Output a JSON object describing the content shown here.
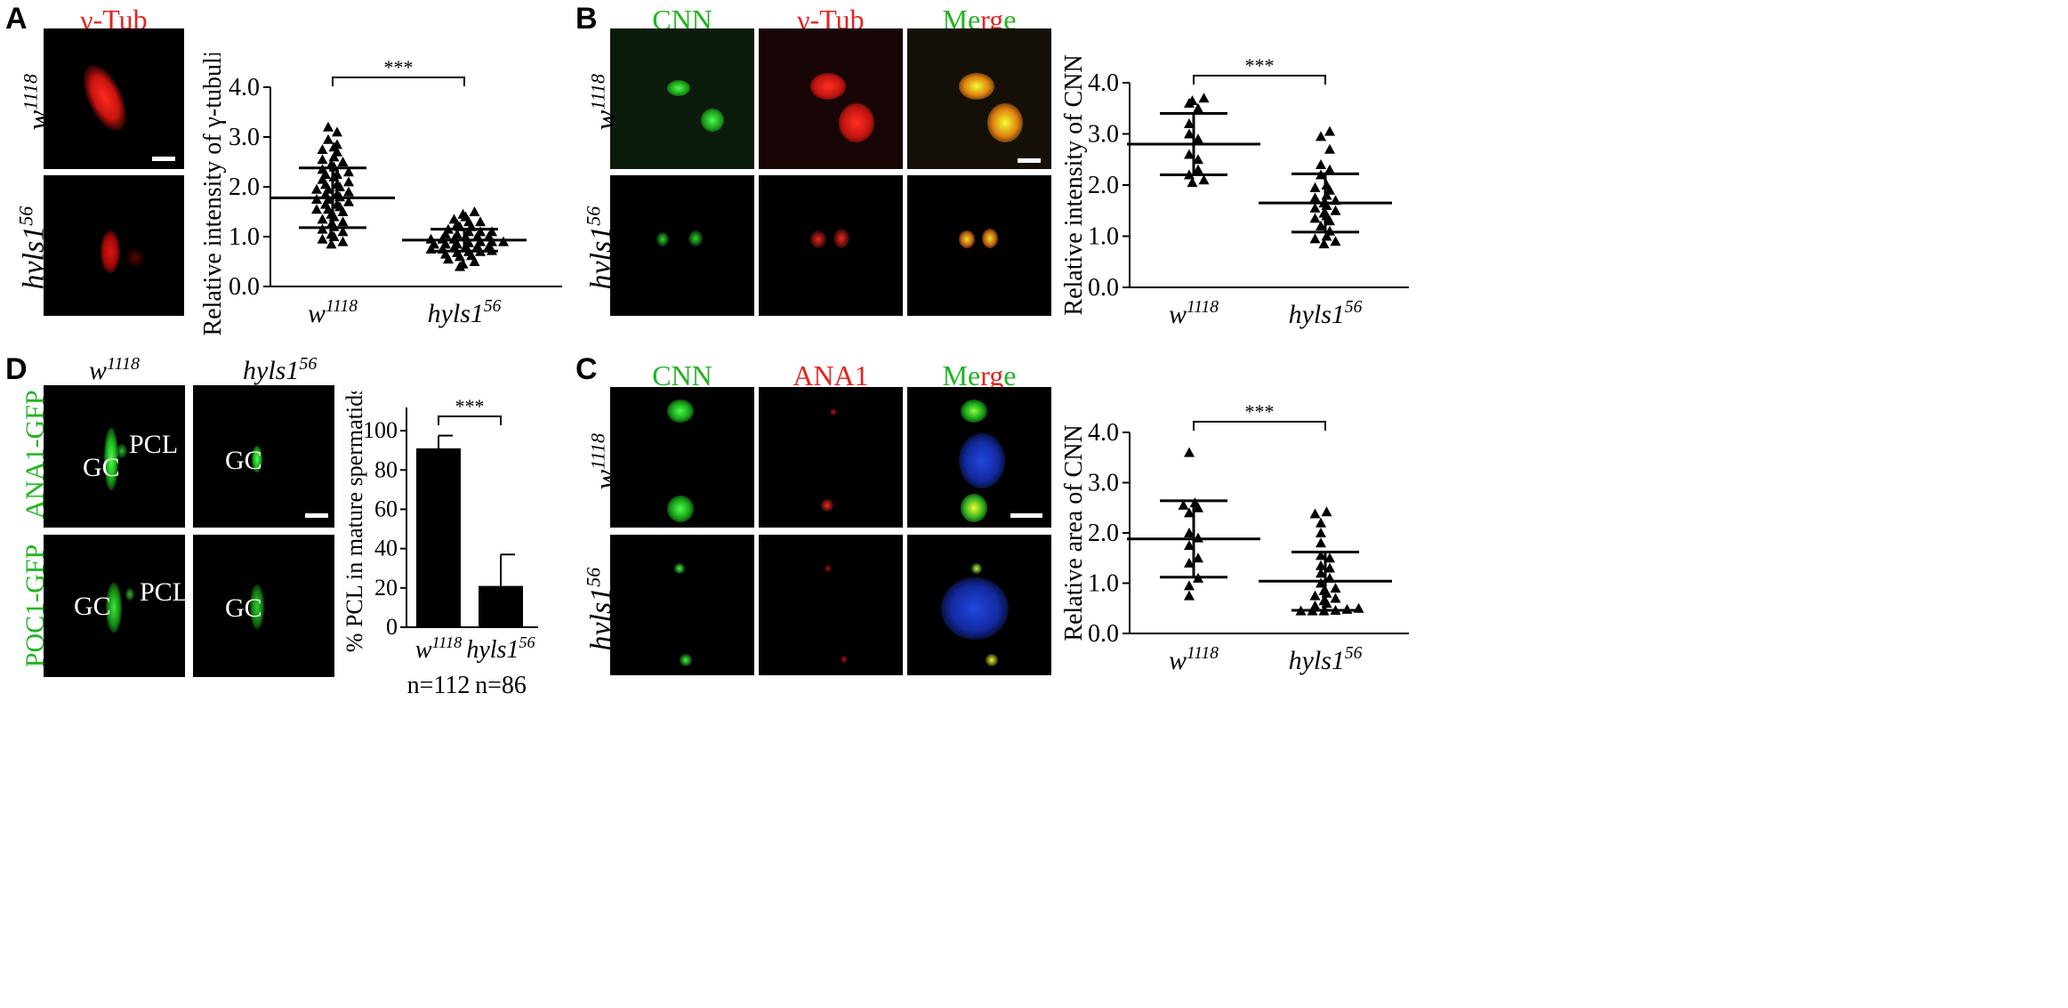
{
  "panels": {
    "A": {
      "letter": "A",
      "channel_header": "γ-Tub",
      "row_labels": [
        "w",
        "1118",
        "hyls1",
        "56"
      ],
      "chart": {
        "ylabel": "Relative intensity of γ-tubulin",
        "yticks": [
          "0.0",
          "1.0",
          "2.0",
          "3.0",
          "4.0"
        ],
        "ylim": [
          0,
          4
        ],
        "significance": "***",
        "xcats": [
          {
            "base": "w",
            "sup": "1118"
          },
          {
            "base": "hyls1",
            "sup": "56"
          }
        ]
      }
    },
    "B": {
      "letter": "B",
      "headers": [
        "CNN",
        "γ-Tub",
        "M",
        "e",
        "r",
        "g",
        "e"
      ],
      "row_labels": [
        "w",
        "1118",
        "hyls1",
        "56"
      ],
      "chart": {
        "ylabel": "Relative intensity of CNN",
        "yticks": [
          "0.0",
          "1.0",
          "2.0",
          "3.0",
          "4.0"
        ],
        "ylim": [
          0,
          4
        ],
        "significance": "***",
        "xcats": [
          {
            "base": "w",
            "sup": "1118"
          },
          {
            "base": "hyls1",
            "sup": "56"
          }
        ]
      }
    },
    "C": {
      "letter": "C",
      "headers": [
        "CNN",
        "ANA1",
        "M",
        "e",
        "r",
        "g",
        "e"
      ],
      "row_labels": [
        "w",
        "1118",
        "hyls1",
        "56"
      ],
      "chart": {
        "ylabel": "Relative area of CNN",
        "yticks": [
          "0.0",
          "1.0",
          "2.0",
          "3.0",
          "4.0"
        ],
        "ylim": [
          0,
          4
        ],
        "significance": "***",
        "xcats": [
          {
            "base": "w",
            "sup": "1118"
          },
          {
            "base": "hyls1",
            "sup": "56"
          }
        ]
      }
    },
    "D": {
      "letter": "D",
      "col_headers": [
        {
          "base": "w",
          "sup": "1118"
        },
        {
          "base": "hyls1",
          "sup": "56"
        }
      ],
      "row_labels": [
        "ANA1-GFP",
        "POC1-GFP"
      ],
      "annotations": {
        "gc": "GC",
        "pcl": "PCL"
      },
      "chart": {
        "ylabel": "% PCL in mature spermatids",
        "yticks": [
          "0",
          "20",
          "40",
          "60",
          "80",
          "100"
        ],
        "ylim": [
          0,
          110
        ],
        "significance": "***",
        "xcats": [
          {
            "base": "w",
            "sup": "1118",
            "n": "n=112"
          },
          {
            "base": "hyls1",
            "sup": "56",
            "n": "n=86"
          }
        ]
      }
    }
  },
  "colors": {
    "green": "#22b422",
    "red": "#e8231f",
    "blue": "#1e3cc8"
  },
  "chart_data": [
    {
      "type": "scatter",
      "panel": "A",
      "ylabel": "Relative intensity of γ-tubulin",
      "ylim": [
        0,
        4
      ],
      "categories": [
        "w1118",
        "hyls156"
      ],
      "series": [
        {
          "name": "w1118",
          "mean": 1.78,
          "sd": 0.6,
          "values": [
            3.2,
            3.1,
            2.95,
            2.85,
            2.8,
            2.75,
            2.7,
            2.6,
            2.55,
            2.5,
            2.45,
            2.4,
            2.35,
            2.3,
            2.25,
            2.2,
            2.15,
            2.1,
            2.05,
            2.0,
            1.95,
            1.9,
            1.85,
            1.8,
            1.75,
            1.7,
            1.65,
            1.6,
            1.55,
            1.5,
            1.45,
            1.4,
            1.35,
            1.3,
            1.25,
            1.2,
            1.15,
            1.1,
            1.05,
            1.0,
            0.95,
            0.9,
            0.85,
            1.75,
            1.65,
            1.55,
            2.05,
            1.95,
            2.25,
            1.85
          ]
        },
        {
          "name": "hyls156",
          "mean": 0.93,
          "sd": 0.22,
          "values": [
            1.5,
            1.45,
            1.4,
            1.35,
            1.3,
            1.3,
            1.25,
            1.2,
            1.2,
            1.15,
            1.1,
            1.1,
            1.05,
            1.0,
            1.0,
            0.95,
            0.95,
            0.9,
            0.9,
            0.88,
            0.85,
            0.85,
            0.8,
            0.8,
            0.78,
            0.75,
            0.72,
            0.7,
            0.7,
            0.68,
            0.65,
            0.62,
            0.6,
            0.55,
            0.5,
            0.45,
            0.4,
            1.0,
            0.9,
            0.8,
            1.1,
            0.95,
            0.85,
            1.05,
            0.75
          ]
        }
      ]
    },
    {
      "type": "scatter",
      "panel": "B",
      "ylabel": "Relative intensity of CNN",
      "ylim": [
        0,
        4
      ],
      "categories": [
        "w1118",
        "hyls156"
      ],
      "series": [
        {
          "name": "w1118",
          "mean": 2.8,
          "sd": 0.6,
          "values": [
            3.7,
            3.65,
            3.6,
            3.5,
            3.2,
            3.0,
            2.9,
            2.6,
            2.5,
            2.3,
            2.2,
            2.1,
            2.05
          ]
        },
        {
          "name": "hyls156",
          "mean": 1.65,
          "sd": 0.57,
          "values": [
            3.05,
            2.95,
            2.7,
            2.4,
            2.3,
            2.2,
            2.0,
            1.95,
            1.9,
            1.8,
            1.75,
            1.7,
            1.65,
            1.6,
            1.55,
            1.5,
            1.45,
            1.4,
            1.35,
            1.3,
            1.2,
            1.1,
            1.0,
            0.95,
            0.9,
            0.85
          ]
        }
      ]
    },
    {
      "type": "scatter",
      "panel": "C",
      "ylabel": "Relative area of CNN",
      "ylim": [
        0,
        4
      ],
      "categories": [
        "w1118",
        "hyls156"
      ],
      "series": [
        {
          "name": "w1118",
          "mean": 1.88,
          "sd": 0.76,
          "values": [
            3.6,
            2.6,
            2.55,
            2.5,
            2.4,
            2.0,
            1.9,
            1.75,
            1.5,
            1.4,
            1.1,
            0.95,
            0.75
          ]
        },
        {
          "name": "hyls156",
          "mean": 1.04,
          "sd": 0.58,
          "values": [
            2.42,
            2.38,
            2.2,
            2.0,
            1.8,
            1.55,
            1.5,
            1.35,
            1.3,
            1.2,
            1.1,
            1.0,
            0.9,
            0.85,
            0.8,
            0.75,
            0.7,
            0.65,
            0.6,
            0.55,
            0.5,
            0.48,
            0.46,
            0.45,
            0.45,
            0.45
          ]
        }
      ]
    },
    {
      "type": "bar",
      "panel": "D",
      "ylabel": "% PCL in mature spermatids",
      "ylim": [
        0,
        110
      ],
      "categories": [
        "w1118",
        "hyls156"
      ],
      "values": [
        91,
        21
      ],
      "errors": [
        6.5,
        16
      ]
    }
  ]
}
